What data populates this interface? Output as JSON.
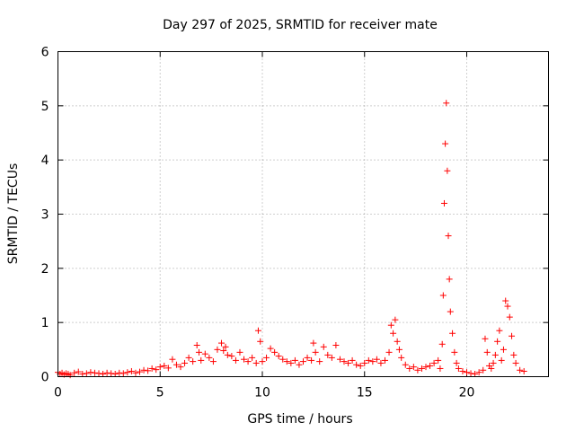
{
  "chart_data": {
    "type": "scatter",
    "title": "Day 297 of 2025, SRMTID for receiver mate",
    "xlabel": "GPS time / hours",
    "ylabel": "SRMTID / TECUs",
    "xlim": [
      0,
      24
    ],
    "ylim": [
      0,
      6
    ],
    "xticks": [
      0,
      5,
      10,
      15,
      20
    ],
    "xtick_labels": [
      "0",
      "5",
      "10",
      "15",
      "20"
    ],
    "yticks": [
      0,
      1,
      2,
      3,
      4,
      5,
      6
    ],
    "ytick_labels": [
      "0",
      "1",
      "2",
      "3",
      "4",
      "5",
      "6"
    ],
    "grid": true,
    "marker": "plus",
    "series": [
      {
        "name": "SRMTID",
        "color": "#ff0000",
        "x": [
          0.0,
          0.1,
          0.2,
          0.3,
          0.4,
          0.5,
          0.6,
          0.8,
          1.0,
          1.2,
          1.4,
          1.6,
          1.8,
          2.0,
          2.2,
          2.4,
          2.6,
          2.8,
          3.0,
          3.2,
          3.4,
          3.6,
          3.8,
          4.0,
          4.2,
          4.4,
          4.6,
          4.8,
          5.0,
          5.2,
          5.4,
          5.6,
          5.8,
          6.0,
          6.2,
          6.4,
          6.6,
          6.8,
          6.9,
          7.0,
          7.2,
          7.4,
          7.6,
          7.8,
          8.0,
          8.1,
          8.2,
          8.3,
          8.5,
          8.7,
          8.9,
          9.1,
          9.3,
          9.5,
          9.7,
          9.8,
          9.9,
          10.0,
          10.2,
          10.4,
          10.6,
          10.8,
          11.0,
          11.2,
          11.4,
          11.6,
          11.8,
          12.0,
          12.2,
          12.4,
          12.5,
          12.6,
          12.8,
          13.0,
          13.2,
          13.4,
          13.6,
          13.8,
          14.0,
          14.2,
          14.4,
          14.6,
          14.8,
          15.0,
          15.2,
          15.4,
          15.6,
          15.8,
          16.0,
          16.2,
          16.3,
          16.4,
          16.5,
          16.6,
          16.7,
          16.8,
          17.0,
          17.2,
          17.4,
          17.6,
          17.8,
          18.0,
          18.2,
          18.4,
          18.6,
          18.7,
          18.8,
          18.85,
          18.9,
          18.95,
          19.0,
          19.05,
          19.1,
          19.15,
          19.2,
          19.3,
          19.4,
          19.5,
          19.6,
          19.8,
          20.0,
          20.2,
          20.4,
          20.6,
          20.8,
          20.9,
          21.0,
          21.1,
          21.2,
          21.3,
          21.4,
          21.5,
          21.6,
          21.7,
          21.8,
          21.9,
          22.0,
          22.1,
          22.2,
          22.3,
          22.4,
          22.6,
          22.8
        ],
        "values": [
          0.08,
          0.05,
          0.07,
          0.04,
          0.06,
          0.05,
          0.03,
          0.07,
          0.09,
          0.05,
          0.06,
          0.08,
          0.07,
          0.06,
          0.05,
          0.07,
          0.06,
          0.05,
          0.07,
          0.06,
          0.08,
          0.1,
          0.07,
          0.09,
          0.12,
          0.11,
          0.15,
          0.13,
          0.18,
          0.2,
          0.16,
          0.32,
          0.22,
          0.18,
          0.25,
          0.35,
          0.28,
          0.58,
          0.45,
          0.3,
          0.42,
          0.35,
          0.28,
          0.5,
          0.62,
          0.48,
          0.55,
          0.4,
          0.38,
          0.3,
          0.45,
          0.32,
          0.28,
          0.35,
          0.25,
          0.85,
          0.65,
          0.28,
          0.35,
          0.52,
          0.45,
          0.38,
          0.32,
          0.28,
          0.25,
          0.3,
          0.22,
          0.28,
          0.35,
          0.3,
          0.62,
          0.45,
          0.28,
          0.55,
          0.4,
          0.35,
          0.58,
          0.32,
          0.28,
          0.25,
          0.3,
          0.22,
          0.2,
          0.25,
          0.3,
          0.28,
          0.32,
          0.25,
          0.3,
          0.45,
          0.95,
          0.8,
          1.05,
          0.65,
          0.5,
          0.35,
          0.22,
          0.15,
          0.18,
          0.12,
          0.15,
          0.18,
          0.2,
          0.25,
          0.3,
          0.15,
          0.6,
          1.5,
          3.2,
          4.3,
          5.05,
          3.8,
          2.6,
          1.8,
          1.2,
          0.8,
          0.45,
          0.25,
          0.15,
          0.1,
          0.08,
          0.06,
          0.05,
          0.08,
          0.12,
          0.7,
          0.45,
          0.2,
          0.15,
          0.25,
          0.4,
          0.65,
          0.85,
          0.3,
          0.5,
          1.4,
          1.3,
          1.1,
          0.75,
          0.4,
          0.25,
          0.12,
          0.1
        ]
      }
    ]
  }
}
